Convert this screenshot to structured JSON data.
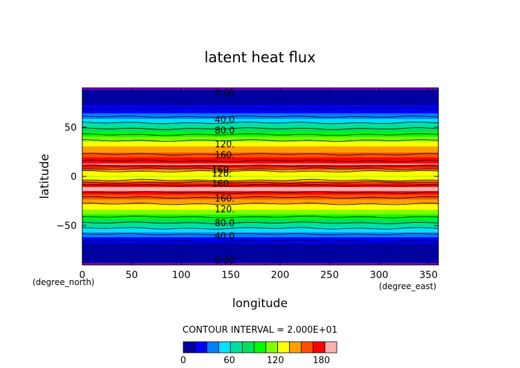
{
  "chart_data": {
    "type": "heatmap",
    "title": "latent heat flux",
    "xlabel": "longitude",
    "ylabel": "latitude",
    "x_unit": "(degree_east)",
    "y_unit": "(degree_north)",
    "xlim": [
      0,
      360
    ],
    "ylim": [
      -90,
      90
    ],
    "x_ticks": [
      0,
      50,
      100,
      150,
      200,
      250,
      300,
      350
    ],
    "y_ticks": [
      50,
      0,
      -50
    ],
    "contour_interval_text": "CONTOUR INTERVAL = 2.000E+01",
    "contour_interval": 20,
    "levels_range": [
      0,
      200
    ],
    "colorbar": {
      "tick_values": [
        0,
        60,
        120,
        180
      ],
      "colors": [
        "#0000a0",
        "#0000ff",
        "#0080ff",
        "#00e0ff",
        "#00e0a0",
        "#00e060",
        "#00ff00",
        "#80ff00",
        "#ffff00",
        "#ffa000",
        "#ff5000",
        "#ff0000",
        "#ffb0b0"
      ]
    },
    "contour_labels": [
      {
        "text": "0.00",
        "lat": 85,
        "lon": 130
      },
      {
        "text": "40.0",
        "lat": 58,
        "lon": 130
      },
      {
        "text": "80.0",
        "lat": 47,
        "lon": 130
      },
      {
        "text": "120.",
        "lat": 33,
        "lon": 130
      },
      {
        "text": "160.",
        "lat": 22,
        "lon": 130
      },
      {
        "text": "160.",
        "lat": 7,
        "lon": 127
      },
      {
        "text": "120.",
        "lat": 3,
        "lon": 127
      },
      {
        "text": "160.",
        "lat": -7,
        "lon": 127
      },
      {
        "text": "160.",
        "lat": -22,
        "lon": 130
      },
      {
        "text": "120.",
        "lat": -33,
        "lon": 130
      },
      {
        "text": "80.0",
        "lat": -47,
        "lon": 130
      },
      {
        "text": "40.0",
        "lat": -60,
        "lon": 130
      },
      {
        "text": "0.00",
        "lat": -85,
        "lon": 130
      }
    ],
    "zonal_profile": [
      {
        "lat": 90,
        "value": 0
      },
      {
        "lat": 85,
        "value": 5
      },
      {
        "lat": 80,
        "value": 10
      },
      {
        "lat": 75,
        "value": 12
      },
      {
        "lat": 70,
        "value": 18
      },
      {
        "lat": 65,
        "value": 28
      },
      {
        "lat": 60,
        "value": 42
      },
      {
        "lat": 55,
        "value": 58
      },
      {
        "lat": 50,
        "value": 75
      },
      {
        "lat": 45,
        "value": 92
      },
      {
        "lat": 40,
        "value": 108
      },
      {
        "lat": 35,
        "value": 125
      },
      {
        "lat": 30,
        "value": 140
      },
      {
        "lat": 25,
        "value": 152
      },
      {
        "lat": 20,
        "value": 168
      },
      {
        "lat": 15,
        "value": 182
      },
      {
        "lat": 12,
        "value": 186
      },
      {
        "lat": 10,
        "value": 176
      },
      {
        "lat": 7,
        "value": 155
      },
      {
        "lat": 5,
        "value": 138
      },
      {
        "lat": 3,
        "value": 128
      },
      {
        "lat": 0,
        "value": 122
      },
      {
        "lat": -3,
        "value": 132
      },
      {
        "lat": -6,
        "value": 158
      },
      {
        "lat": -8,
        "value": 176
      },
      {
        "lat": -11,
        "value": 186
      },
      {
        "lat": -15,
        "value": 186
      },
      {
        "lat": -18,
        "value": 172
      },
      {
        "lat": -22,
        "value": 158
      },
      {
        "lat": -26,
        "value": 146
      },
      {
        "lat": -30,
        "value": 134
      },
      {
        "lat": -35,
        "value": 120
      },
      {
        "lat": -40,
        "value": 104
      },
      {
        "lat": -45,
        "value": 88
      },
      {
        "lat": -50,
        "value": 70
      },
      {
        "lat": -55,
        "value": 52
      },
      {
        "lat": -60,
        "value": 36
      },
      {
        "lat": -65,
        "value": 22
      },
      {
        "lat": -70,
        "value": 12
      },
      {
        "lat": -75,
        "value": 8
      },
      {
        "lat": -80,
        "value": 5
      },
      {
        "lat": -85,
        "value": 3
      },
      {
        "lat": -90,
        "value": 0
      }
    ]
  }
}
